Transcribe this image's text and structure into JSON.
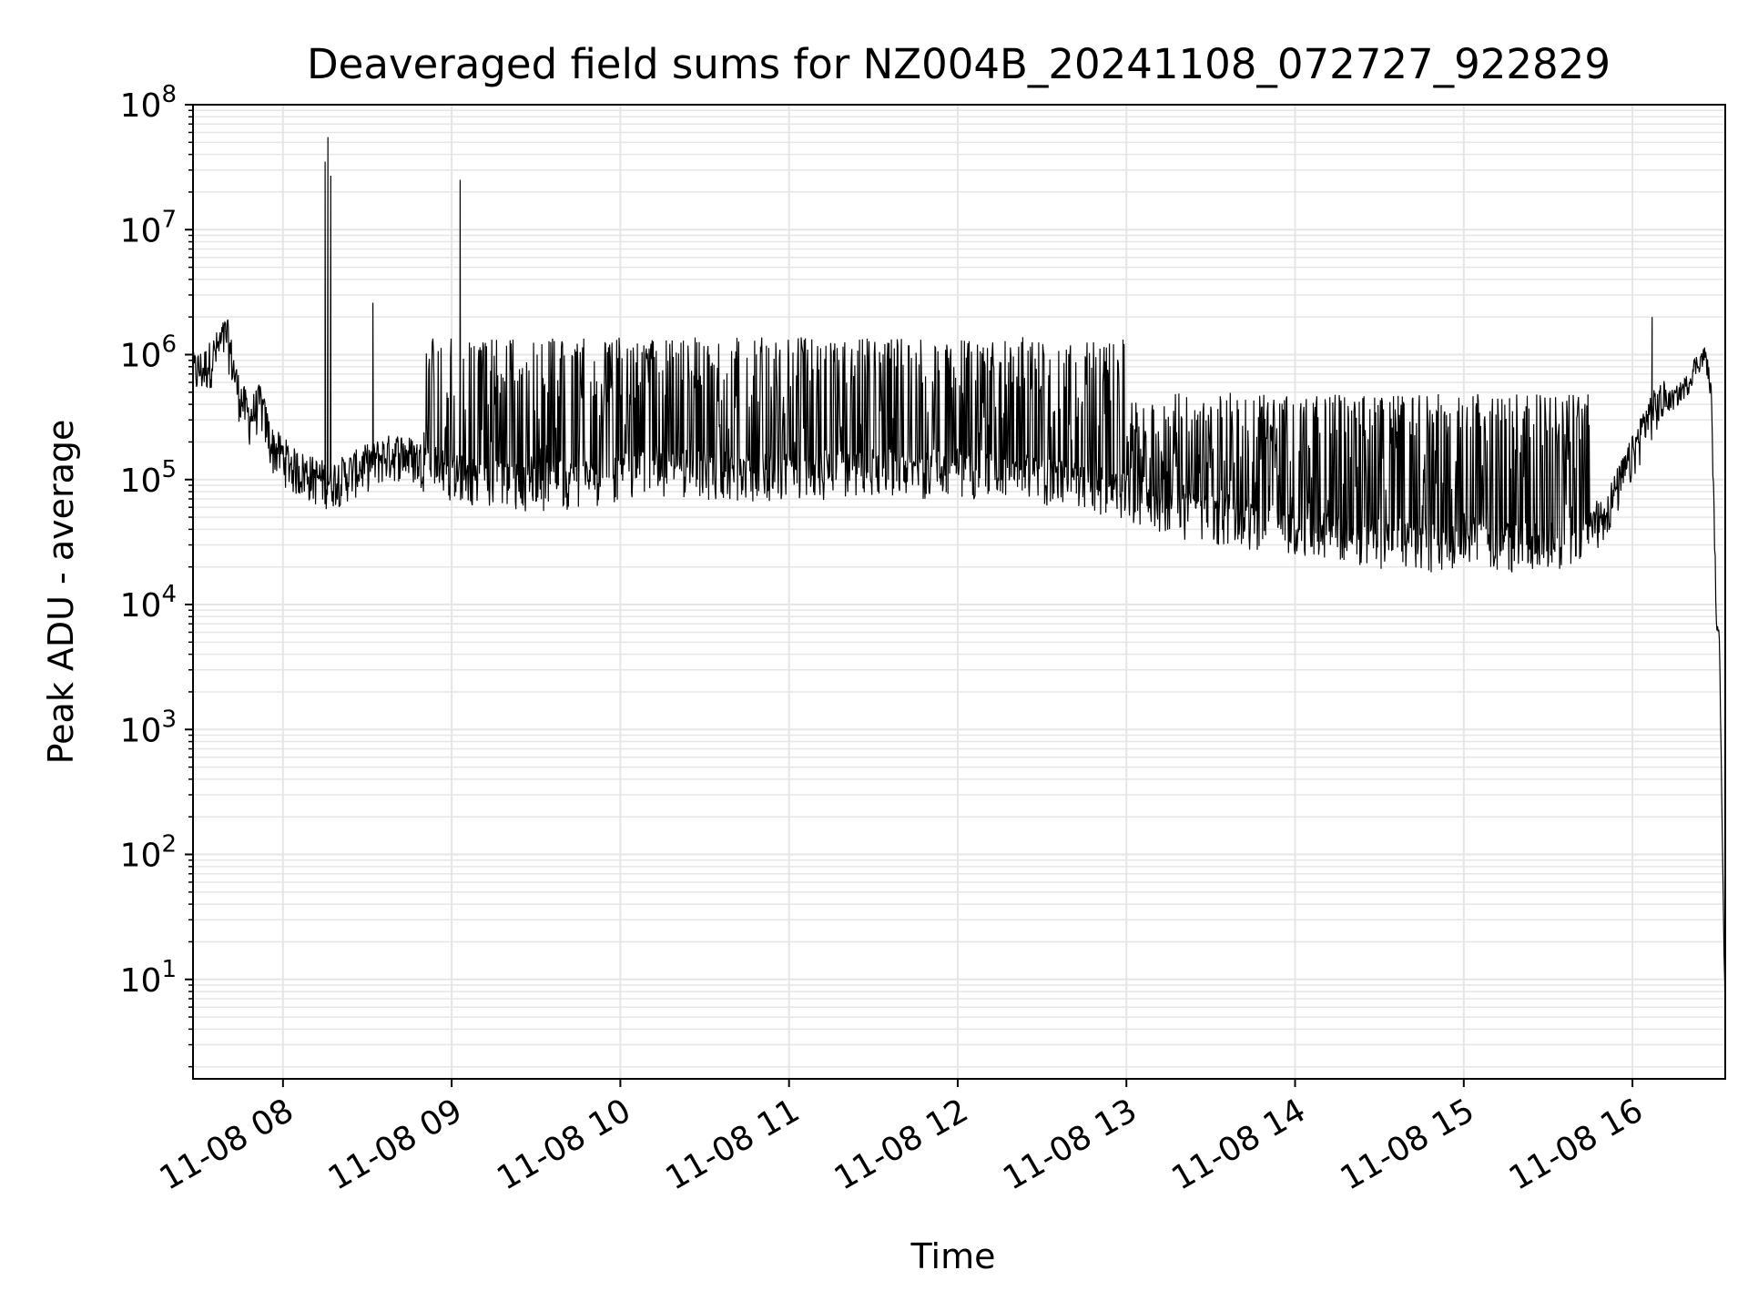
{
  "chart_data": {
    "type": "line",
    "title": "Deaveraged field sums for NZ004B_20241108_072727_922829",
    "xlabel": "Time",
    "ylabel": "Peak ADU - average",
    "yscale": "log",
    "ylim": [
      1.6,
      100000000
    ],
    "xlim": [
      "2024-11-08 07:28",
      "2024-11-08 16:33"
    ],
    "grid": true,
    "line_color": "#000000",
    "grid_color": "#e6e6e6",
    "x_ticks": [
      {
        "value": "2024-11-08 08:00",
        "label": "11-08 08"
      },
      {
        "value": "2024-11-08 09:00",
        "label": "11-08 09"
      },
      {
        "value": "2024-11-08 10:00",
        "label": "11-08 10"
      },
      {
        "value": "2024-11-08 11:00",
        "label": "11-08 11"
      },
      {
        "value": "2024-11-08 12:00",
        "label": "11-08 12"
      },
      {
        "value": "2024-11-08 13:00",
        "label": "11-08 13"
      },
      {
        "value": "2024-11-08 14:00",
        "label": "11-08 14"
      },
      {
        "value": "2024-11-08 15:00",
        "label": "11-08 15"
      },
      {
        "value": "2024-11-08 16:00",
        "label": "11-08 16"
      }
    ],
    "y_ticks": [
      {
        "value": 10,
        "base": "10",
        "exp": "1"
      },
      {
        "value": 100,
        "base": "10",
        "exp": "2"
      },
      {
        "value": 1000,
        "base": "10",
        "exp": "3"
      },
      {
        "value": 10000,
        "base": "10",
        "exp": "4"
      },
      {
        "value": 100000,
        "base": "10",
        "exp": "5"
      },
      {
        "value": 1000000,
        "base": "10",
        "exp": "6"
      },
      {
        "value": 10000000,
        "base": "10",
        "exp": "7"
      },
      {
        "value": 100000000,
        "base": "10",
        "exp": "8"
      }
    ],
    "series": [
      {
        "x": [
          "2024-11-08 07:28",
          "2024-11-08 07:32",
          "2024-11-08 07:36",
          "2024-11-08 07:40",
          "2024-11-08 07:44",
          "2024-11-08 07:48",
          "2024-11-08 07:52",
          "2024-11-08 07:56",
          "2024-11-08 08:00",
          "2024-11-08 08:04",
          "2024-11-08 08:08",
          "2024-11-08 08:12",
          "2024-11-08 08:16",
          "2024-11-08 08:20",
          "2024-11-08 08:24",
          "2024-11-08 08:30",
          "2024-11-08 08:36",
          "2024-11-08 08:42",
          "2024-11-08 08:48",
          "2024-11-08 08:54",
          "2024-11-08 09:00",
          "2024-11-08 09:05",
          "2024-11-08 09:10",
          "2024-11-08 09:20",
          "2024-11-08 09:30",
          "2024-11-08 09:40",
          "2024-11-08 09:50",
          "2024-11-08 10:00",
          "2024-11-08 10:15",
          "2024-11-08 10:30",
          "2024-11-08 10:45",
          "2024-11-08 11:00",
          "2024-11-08 11:15",
          "2024-11-08 11:30",
          "2024-11-08 11:45",
          "2024-11-08 12:00",
          "2024-11-08 12:15",
          "2024-11-08 12:30",
          "2024-11-08 12:45",
          "2024-11-08 13:00",
          "2024-11-08 13:15",
          "2024-11-08 13:30",
          "2024-11-08 13:45",
          "2024-11-08 14:00",
          "2024-11-08 14:15",
          "2024-11-08 14:30",
          "2024-11-08 14:45",
          "2024-11-08 15:00",
          "2024-11-08 15:15",
          "2024-11-08 15:30",
          "2024-11-08 15:40",
          "2024-11-08 15:50",
          "2024-11-08 16:00",
          "2024-11-08 16:05",
          "2024-11-08 16:10",
          "2024-11-08 16:15",
          "2024-11-08 16:20",
          "2024-11-08 16:22",
          "2024-11-08 16:24",
          "2024-11-08 16:26",
          "2024-11-08 16:28",
          "2024-11-08 16:30",
          "2024-11-08 16:31",
          "2024-11-08 16:33"
        ],
        "y_base": [
          700000,
          750000,
          1000000,
          1400000,
          500000,
          300000,
          400000,
          180000,
          150000,
          120000,
          110000,
          100000,
          95000,
          100000,
          110000,
          130000,
          150000,
          160000,
          140000,
          120000,
          110000,
          105000,
          100000,
          95000,
          90000,
          95000,
          100000,
          110000,
          120000,
          115000,
          110000,
          110000,
          115000,
          120000,
          115000,
          120000,
          110000,
          100000,
          90000,
          75000,
          55000,
          50000,
          45000,
          40000,
          35000,
          32000,
          30000,
          30000,
          30000,
          30000,
          35000,
          50000,
          150000,
          300000,
          400000,
          450000,
          600000,
          800000,
          900000,
          1000000,
          500000,
          6000,
          5000,
          4
        ]
      }
    ],
    "spikes": [
      {
        "x": "2024-11-08 08:15",
        "y": 35000000
      },
      {
        "x": "2024-11-08 08:16",
        "y": 55000000
      },
      {
        "x": "2024-11-08 08:17",
        "y": 27000000
      },
      {
        "x": "2024-11-08 08:32",
        "y": 2600000
      },
      {
        "x": "2024-11-08 09:03",
        "y": 25000000
      },
      {
        "x": "2024-11-08 16:07",
        "y": 2000000
      }
    ]
  }
}
